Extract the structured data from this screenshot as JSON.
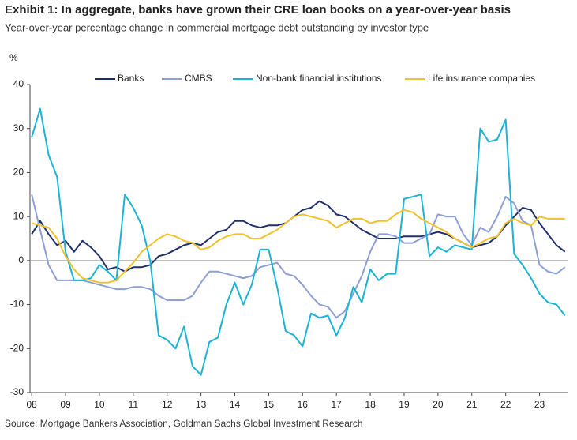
{
  "chart_data": {
    "type": "line",
    "title": "Exhibit 1: In aggregate, banks have grown their CRE loan books on a year-over-year basis",
    "subtitle": "Year-over-year percentage change in commercial mortgage debt outstanding by investor type",
    "y_axis_label": "%",
    "source": "Source: Mortgage Bankers Association, Goldman Sachs Global Investment Research",
    "x": [
      2008,
      2008.25,
      2008.5,
      2008.75,
      2009,
      2009.25,
      2009.5,
      2009.75,
      2010,
      2010.25,
      2010.5,
      2010.75,
      2011,
      2011.25,
      2011.5,
      2011.75,
      2012,
      2012.25,
      2012.5,
      2012.75,
      2013,
      2013.25,
      2013.5,
      2013.75,
      2014,
      2014.25,
      2014.5,
      2014.75,
      2015,
      2015.25,
      2015.5,
      2015.75,
      2016,
      2016.25,
      2016.5,
      2016.75,
      2017,
      2017.25,
      2017.5,
      2017.75,
      2018,
      2018.25,
      2018.5,
      2018.75,
      2019,
      2019.25,
      2019.5,
      2019.75,
      2020,
      2020.25,
      2020.5,
      2020.75,
      2021,
      2021.25,
      2021.5,
      2021.75,
      2022,
      2022.25,
      2022.5,
      2022.75,
      2023,
      2023.25,
      2023.5,
      2023.75
    ],
    "xlim": [
      2007.95,
      2023.85
    ],
    "xticks": [
      {
        "value": 2008,
        "label": "08"
      },
      {
        "value": 2009,
        "label": "09"
      },
      {
        "value": 2010,
        "label": "10"
      },
      {
        "value": 2011,
        "label": "11"
      },
      {
        "value": 2012,
        "label": "12"
      },
      {
        "value": 2013,
        "label": "13"
      },
      {
        "value": 2014,
        "label": "14"
      },
      {
        "value": 2015,
        "label": "15"
      },
      {
        "value": 2016,
        "label": "16"
      },
      {
        "value": 2017,
        "label": "17"
      },
      {
        "value": 2018,
        "label": "18"
      },
      {
        "value": 2019,
        "label": "19"
      },
      {
        "value": 2020,
        "label": "20"
      },
      {
        "value": 2021,
        "label": "21"
      },
      {
        "value": 2022,
        "label": "22"
      },
      {
        "value": 2023,
        "label": "23"
      }
    ],
    "ylim": [
      -30,
      40
    ],
    "yticks": [
      -30,
      -20,
      -10,
      0,
      10,
      20,
      30,
      40
    ],
    "series": [
      {
        "name": "Banks",
        "color": "#1f2f6b",
        "values": [
          6,
          9,
          6,
          3.5,
          4.5,
          2,
          4.5,
          3,
          1,
          -2,
          -1.5,
          -2.5,
          -1.5,
          -1.5,
          -1,
          1,
          1.5,
          2.5,
          3.5,
          4,
          3.5,
          5,
          6.5,
          7,
          9,
          9,
          8,
          7.5,
          8,
          8,
          8.5,
          10,
          11.5,
          12,
          13.5,
          12.5,
          10.5,
          10,
          8.5,
          7,
          6,
          5,
          5,
          5,
          5.5,
          5.5,
          5.5,
          6,
          6.5,
          6,
          5,
          4,
          3,
          3.5,
          4,
          5.5,
          8,
          10,
          12,
          11.5,
          8.5,
          6,
          3.5,
          2
        ]
      },
      {
        "name": "CMBS",
        "color": "#8e9fd6",
        "values": [
          15,
          7,
          -1,
          -4.5,
          -4.5,
          -4.5,
          -4.5,
          -5,
          -5.5,
          -6,
          -6.5,
          -6.5,
          -6,
          -6,
          -6.5,
          -8,
          -9,
          -9,
          -9,
          -8,
          -5,
          -2.5,
          -2.5,
          -3,
          -3.5,
          -4,
          -3.5,
          -1.5,
          -1,
          -0.5,
          -3,
          -3.5,
          -5.5,
          -8,
          -10,
          -10.5,
          -13,
          -11.5,
          -7.5,
          -3.5,
          2,
          6,
          6,
          5.5,
          4,
          4,
          5,
          6,
          10.5,
          10,
          10,
          6,
          3.5,
          7.5,
          6.5,
          10,
          14.5,
          13,
          9,
          8,
          -1,
          -2.5,
          -3,
          -1.5
        ]
      },
      {
        "name": "Non-bank financial institutions",
        "color": "#1ab3d6",
        "values": [
          28,
          34.5,
          24,
          19,
          2,
          -4.5,
          -4.5,
          -4,
          -1,
          -2.5,
          -4.5,
          15,
          12,
          8,
          0,
          -17,
          -18,
          -20,
          -15,
          -24,
          -26,
          -18.5,
          -17.5,
          -10,
          -5,
          -10,
          -5.5,
          2.5,
          2.5,
          -6,
          -16,
          -17,
          -19.5,
          -12,
          -13,
          -12.5,
          -17,
          -13,
          -6,
          -9.5,
          -2,
          -4.5,
          -3,
          -3,
          14,
          14.5,
          15,
          1,
          3,
          2,
          3.5,
          3,
          2.5,
          30,
          27,
          27.5,
          32,
          1.5,
          -1,
          -4,
          -7.5,
          -9.5,
          -10,
          -12.5
        ]
      },
      {
        "name": "Life insurance companies",
        "color": "#f2c12e",
        "values": [
          8.5,
          8,
          7.5,
          5,
          1,
          -2,
          -4,
          -4.5,
          -5,
          -5,
          -4.5,
          -2.5,
          -0.5,
          2,
          3.5,
          5,
          6,
          5.5,
          4.5,
          4,
          2.5,
          3,
          4.5,
          5.5,
          6,
          6,
          5,
          5,
          6,
          7,
          8.5,
          10,
          10.5,
          10,
          9.5,
          9,
          7.5,
          8.5,
          9.5,
          9.5,
          8.5,
          9,
          9,
          10.5,
          11.5,
          11,
          9.5,
          8.5,
          7.5,
          6.5,
          5,
          4,
          3,
          4,
          5,
          5.5,
          8.5,
          9.5,
          8.5,
          8,
          10,
          9.5,
          9.5,
          9.5
        ]
      }
    ],
    "legend": "top"
  }
}
